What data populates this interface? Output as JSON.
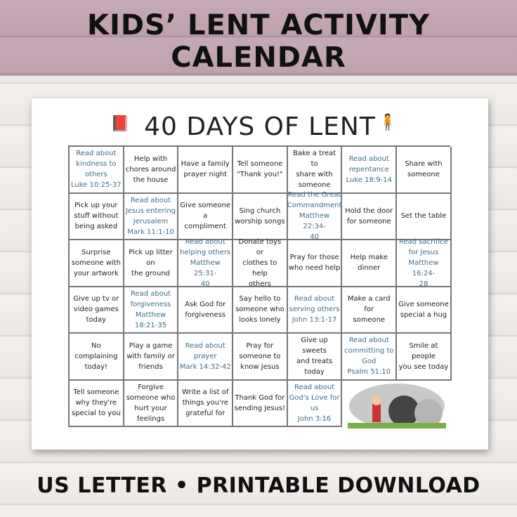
{
  "header": {
    "line1": "KIDS’ LENT ACTIVITY",
    "line2": "CALENDAR"
  },
  "calendar": {
    "title": "40 DAYS OF LENT",
    "colors": {
      "scripture": "#3f6d8c",
      "text": "#222222",
      "grid": "#777777"
    },
    "cells": [
      {
        "text": "Read about\nkindness to\nothers\nLuke 10:25-37",
        "scripture": true
      },
      {
        "text": "Help with\nchores around\nthe house",
        "scripture": false
      },
      {
        "text": "Have a family\nprayer night",
        "scripture": false
      },
      {
        "text": "Tell someone\n\"Thank you!\"",
        "scripture": false
      },
      {
        "text": "Bake a treat to\nshare with\nsomeone",
        "scripture": false
      },
      {
        "text": "Read about\nrepentance\nLuke 18:9-14",
        "scripture": true
      },
      {
        "text": "Share with\nsomeone",
        "scripture": false
      },
      {
        "text": "Pick up your\nstuff without\nbeing asked",
        "scripture": false
      },
      {
        "text": "Read about\nJesus entering\nJerusalem\nMark 11:1-10",
        "scripture": true
      },
      {
        "text": "Give someone a\ncompliment",
        "scripture": false
      },
      {
        "text": "Sing church\nworship songs",
        "scripture": false
      },
      {
        "text": "Read the Great\nCommandment\nMatthew 22:34-\n40",
        "scripture": true
      },
      {
        "text": "Hold the door\nfor someone",
        "scripture": false
      },
      {
        "text": "Set the table",
        "scripture": false
      },
      {
        "text": "Surprise\nsomeone with\nyour artwork",
        "scripture": false
      },
      {
        "text": "Pick up litter on\nthe ground",
        "scripture": false
      },
      {
        "text": "Read about\nhelping others\nMatthew 25:31-\n40",
        "scripture": true
      },
      {
        "text": "Donate toys or\nclothes to help\nothers",
        "scripture": false
      },
      {
        "text": "Pray for those\nwho need help",
        "scripture": false
      },
      {
        "text": "Help make\ndinner",
        "scripture": false
      },
      {
        "text": "Read sacrifice\nfor Jesus\nMatthew 16:24-\n28",
        "scripture": true
      },
      {
        "text": "Give up tv or\nvideo games\ntoday",
        "scripture": false
      },
      {
        "text": "Read about\nforgiveness\nMatthew 18:21-35",
        "scripture": true
      },
      {
        "text": "Ask God for\nforgiveness",
        "scripture": false
      },
      {
        "text": "Say hello to\nsomeone who\nlooks lonely",
        "scripture": false
      },
      {
        "text": "Read about\nserving others\nJohn 13:1-17",
        "scripture": true
      },
      {
        "text": "Make a card for\nsomeone",
        "scripture": false
      },
      {
        "text": "Give someone\nspecial a hug",
        "scripture": false
      },
      {
        "text": "No complaining\ntoday!",
        "scripture": false
      },
      {
        "text": "Play a game\nwith family or\nfriends",
        "scripture": false
      },
      {
        "text": "Read about\nprayer\nMark 14:32-42",
        "scripture": true
      },
      {
        "text": "Pray for\nsomeone to\nknow Jesus",
        "scripture": false
      },
      {
        "text": "Give up sweets\nand treats\ntoday",
        "scripture": false
      },
      {
        "text": "Read about\ncommitting to\nGod\nPsalm 51:10",
        "scripture": true
      },
      {
        "text": "Smile at people\nyou see today",
        "scripture": false
      },
      {
        "text": "Tell someone\nwhy they're\nspecial to you",
        "scripture": false
      },
      {
        "text": "Forgive\nsomeone who\nhurt your\nfeelings",
        "scripture": false
      },
      {
        "text": "Write a list of\nthings you're\ngrateful for",
        "scripture": false
      },
      {
        "text": "Thank God for\nsending Jesus!",
        "scripture": false
      },
      {
        "text": "Read about\nGod's Love for\nus\nJohn 3:16",
        "scripture": true
      }
    ]
  },
  "footer": {
    "text": "US LETTER  • PRINTABLE DOWNLOAD"
  }
}
